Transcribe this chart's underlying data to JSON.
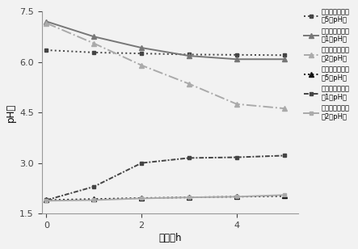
{
  "x": [
    0,
    1,
    2,
    3,
    4,
    5
  ],
  "stomach_example5": [
    6.35,
    6.28,
    6.25,
    6.22,
    6.21,
    6.2
  ],
  "stomach_control1": [
    7.2,
    6.75,
    6.42,
    6.18,
    6.08,
    6.08
  ],
  "stomach_control2": [
    7.15,
    6.55,
    5.9,
    5.35,
    4.75,
    4.62
  ],
  "intestine_example5": [
    1.9,
    1.93,
    1.96,
    1.98,
    2.0,
    2.02
  ],
  "intestine_control1": [
    1.9,
    2.3,
    3.0,
    3.15,
    3.17,
    3.22
  ],
  "intestine_control2": [
    1.88,
    1.9,
    1.95,
    1.98,
    2.0,
    2.05
  ],
  "legend_labels": [
    "模拟胃液中实施\n例5的pH値",
    "模拟胃液中对比\n例1的pH値",
    "模拟胃液中对比\n例2的pH値",
    "模拟肠液中实施\n例5的pH値",
    "模拟肠液中对比\n例1的pH値",
    "模拟肠液中对比\n例2的pH値"
  ],
  "xlabel": "时间，h",
  "ylabel": "pH値",
  "ylim": [
    1.5,
    7.5
  ],
  "xlim": [
    -0.1,
    5.3
  ],
  "yticks": [
    1.5,
    3.0,
    4.5,
    6.0,
    7.5
  ],
  "xticks": [
    0,
    2,
    4
  ],
  "bg_color": "#f2f2f2",
  "c_dark": "#444444",
  "c_mid": "#777777",
  "c_light": "#aaaaaa",
  "c_vdark": "#111111"
}
